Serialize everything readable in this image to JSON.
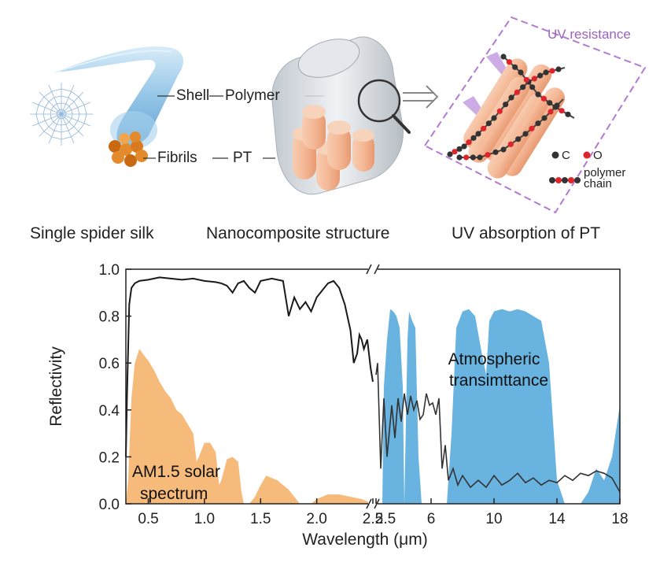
{
  "panel_top": {
    "labels": {
      "shell": "Shell",
      "polymer": "Polymer",
      "fibrils": "Fibrils",
      "pt": "PT",
      "uv_resistance": "UV resistance",
      "legend_c": "C",
      "legend_o": "O",
      "legend_polymer": "polymer",
      "legend_chain": "chain"
    },
    "captions": {
      "silk": "Single spider silk",
      "nano": "Nanocomposite structure",
      "uv": "UV absorption of PT"
    }
  },
  "colors": {
    "solar_fill": "#f5b26b",
    "atmos_fill": "#4fa6db",
    "reflectivity_line": "#1a1a1a",
    "uv_accent": "#b27ad2",
    "silk_blue": "#8fc3e6",
    "fibril_orange": "#e38b2c",
    "pt_peach": "#f5b896",
    "carbon": "#333333",
    "oxygen": "#e0242c"
  },
  "chart_data": {
    "type": "line",
    "ylabel": "Reflectivity",
    "xlabel": "Wavelength (μm)",
    "ylim": [
      0,
      1.0
    ],
    "y_ticks": [
      "0.0",
      "0.2",
      "0.4",
      "0.6",
      "0.8",
      "1.0"
    ],
    "axis_break": true,
    "segment1": {
      "xlim": [
        0.3,
        2.5
      ],
      "ticks": [
        "0.5",
        "1.0",
        "1.5",
        "2.0",
        "2.5"
      ]
    },
    "segment2": {
      "xlim": [
        2.5,
        18
      ],
      "ticks": [
        "2.5",
        "6",
        "10",
        "14",
        "18"
      ]
    },
    "reflectivity_nir": {
      "x": [
        0.3,
        0.31,
        0.33,
        0.35,
        0.38,
        0.42,
        0.5,
        0.6,
        0.7,
        0.8,
        0.9,
        1.0,
        1.1,
        1.15,
        1.2,
        1.25,
        1.3,
        1.35,
        1.4,
        1.45,
        1.5,
        1.6,
        1.7,
        1.75,
        1.8,
        1.85,
        1.9,
        1.95,
        2.0,
        2.05,
        2.1,
        2.15,
        2.2,
        2.25,
        2.3,
        2.33,
        2.36,
        2.38,
        2.4,
        2.42,
        2.45,
        2.48,
        2.5
      ],
      "y": [
        0.2,
        0.45,
        0.85,
        0.92,
        0.94,
        0.95,
        0.955,
        0.965,
        0.96,
        0.955,
        0.96,
        0.95,
        0.945,
        0.94,
        0.93,
        0.9,
        0.94,
        0.95,
        0.92,
        0.9,
        0.95,
        0.96,
        0.95,
        0.8,
        0.88,
        0.83,
        0.86,
        0.82,
        0.88,
        0.91,
        0.94,
        0.95,
        0.92,
        0.85,
        0.74,
        0.6,
        0.64,
        0.72,
        0.7,
        0.66,
        0.7,
        0.58,
        0.52
      ]
    },
    "reflectivity_mir": {
      "x": [
        2.5,
        2.6,
        2.8,
        3.0,
        3.2,
        3.5,
        3.7,
        3.9,
        4.1,
        4.3,
        4.5,
        4.7,
        4.9,
        5.1,
        5.3,
        5.5,
        5.7,
        5.9,
        6.1,
        6.3,
        6.5,
        6.7,
        6.9,
        7.1,
        7.4,
        7.7,
        8.0,
        8.5,
        9.0,
        9.5,
        10.0,
        10.5,
        11.0,
        11.5,
        12.0,
        12.5,
        13.0,
        13.5,
        14.0,
        14.5,
        15.0,
        15.5,
        16.0,
        16.5,
        17.0,
        17.5,
        18.0
      ],
      "y": [
        0.55,
        0.6,
        0.15,
        0.45,
        0.2,
        0.42,
        0.28,
        0.45,
        0.35,
        0.47,
        0.38,
        0.46,
        0.4,
        0.44,
        0.36,
        0.38,
        0.47,
        0.42,
        0.43,
        0.38,
        0.45,
        0.15,
        0.25,
        0.1,
        0.15,
        0.08,
        0.12,
        0.07,
        0.1,
        0.07,
        0.12,
        0.08,
        0.1,
        0.13,
        0.09,
        0.11,
        0.08,
        0.1,
        0.09,
        0.12,
        0.1,
        0.13,
        0.12,
        0.14,
        0.13,
        0.11,
        0.05
      ]
    },
    "solar_spectrum": {
      "label": "AM1.5 solar spectrum",
      "label_line1": "AM1.5 solar",
      "label_line2": "spectrum",
      "x": [
        0.3,
        0.32,
        0.35,
        0.38,
        0.42,
        0.45,
        0.5,
        0.55,
        0.6,
        0.65,
        0.7,
        0.75,
        0.8,
        0.85,
        0.9,
        0.93,
        0.95,
        1.0,
        1.05,
        1.1,
        1.13,
        1.15,
        1.2,
        1.25,
        1.3,
        1.33,
        1.35,
        1.4,
        1.45,
        1.5,
        1.55,
        1.6,
        1.65,
        1.7,
        1.75,
        1.8,
        1.85,
        1.9,
        1.95,
        2.0,
        2.1,
        2.2,
        2.3,
        2.4,
        2.5
      ],
      "y": [
        0.0,
        0.1,
        0.45,
        0.6,
        0.66,
        0.64,
        0.61,
        0.57,
        0.52,
        0.48,
        0.45,
        0.4,
        0.38,
        0.34,
        0.3,
        0.18,
        0.2,
        0.26,
        0.26,
        0.22,
        0.08,
        0.1,
        0.19,
        0.2,
        0.18,
        0.05,
        0.0,
        0.0,
        0.03,
        0.08,
        0.12,
        0.11,
        0.1,
        0.08,
        0.06,
        0.03,
        0.0,
        0.0,
        0.0,
        0.02,
        0.04,
        0.04,
        0.03,
        0.02,
        0.0
      ]
    },
    "atmospheric_transmittance": {
      "label": "Atmospheric transimttance",
      "label_line1": "Atmospheric",
      "label_line2": "transimttance",
      "x": [
        2.5,
        2.9,
        3.0,
        3.2,
        3.4,
        3.6,
        3.8,
        4.0,
        4.2,
        4.3,
        4.5,
        4.6,
        4.8,
        5.0,
        5.2,
        5.4,
        5.5,
        6.0,
        7.0,
        7.3,
        7.6,
        8.0,
        8.4,
        8.8,
        9.2,
        9.5,
        9.7,
        10.0,
        10.5,
        11.0,
        11.5,
        12.0,
        12.5,
        13.0,
        13.5,
        14.0,
        14.5,
        15.0,
        15.5,
        16.0,
        16.5,
        17.0,
        17.5,
        18.0
      ],
      "y": [
        0.0,
        0.0,
        0.5,
        0.7,
        0.83,
        0.82,
        0.8,
        0.75,
        0.5,
        0.0,
        0.7,
        0.82,
        0.78,
        0.75,
        0.2,
        0.0,
        0.0,
        0.0,
        0.0,
        0.3,
        0.75,
        0.82,
        0.83,
        0.8,
        0.65,
        0.55,
        0.78,
        0.82,
        0.83,
        0.82,
        0.83,
        0.82,
        0.8,
        0.78,
        0.6,
        0.1,
        0.0,
        0.0,
        0.0,
        0.05,
        0.15,
        0.1,
        0.2,
        0.42
      ]
    }
  }
}
